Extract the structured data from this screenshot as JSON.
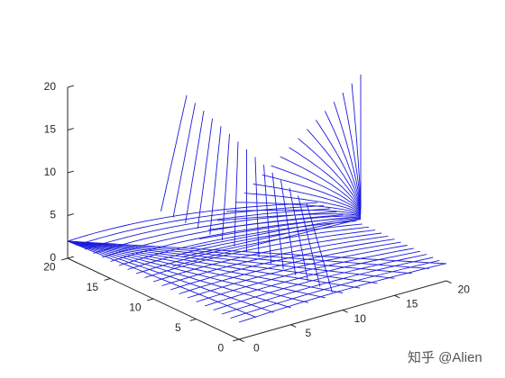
{
  "chart_data": {
    "type": "streamslice",
    "xlim": [
      0,
      20
    ],
    "ylim": [
      0,
      20
    ],
    "zlim": [
      0,
      20
    ],
    "xticks": [
      0,
      5,
      10,
      15,
      20
    ],
    "yticks": [
      0,
      5,
      10,
      15,
      20
    ],
    "zticks": [
      0,
      5,
      10,
      15,
      20
    ],
    "color": "#1a1adc"
  },
  "watermark": "知乎 @Alien"
}
